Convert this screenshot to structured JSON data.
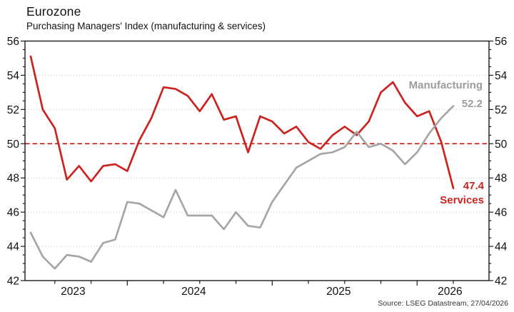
{
  "header": {
    "title": "Eurozone",
    "subtitle": "Purchasing Managers' Index (manufacturing & services)"
  },
  "chart_data": {
    "type": "line",
    "x_months": [
      "2023-05",
      "2023-06",
      "2023-07",
      "2023-08",
      "2023-09",
      "2023-10",
      "2023-11",
      "2023-12",
      "2024-01",
      "2024-02",
      "2024-03",
      "2024-04",
      "2024-05",
      "2024-06",
      "2024-07",
      "2024-08",
      "2024-09",
      "2024-10",
      "2024-11",
      "2024-12",
      "2025-01",
      "2025-02",
      "2025-03",
      "2025-04",
      "2025-05",
      "2025-06",
      "2025-07",
      "2025-08",
      "2025-09",
      "2025-10",
      "2025-11",
      "2025-12",
      "2026-01",
      "2026-02",
      "2026-03",
      "2026-04"
    ],
    "series": [
      {
        "name": "Services",
        "color": "#cb2420",
        "end_label": "47.4",
        "values": [
          55.1,
          52.0,
          50.9,
          47.9,
          48.7,
          47.8,
          48.7,
          48.8,
          48.4,
          50.2,
          51.5,
          53.3,
          53.2,
          52.8,
          51.9,
          52.9,
          51.4,
          51.6,
          49.5,
          51.6,
          51.3,
          50.6,
          51.0,
          50.1,
          49.7,
          50.5,
          51.0,
          50.5,
          51.3,
          53.0,
          53.6,
          52.4,
          51.6,
          51.9,
          50.1,
          47.4
        ]
      },
      {
        "name": "Manufacturing",
        "color": "#a6a6a6",
        "end_label": "52.2",
        "values": [
          44.8,
          43.4,
          42.7,
          43.5,
          43.4,
          43.1,
          44.2,
          44.4,
          46.6,
          46.5,
          46.1,
          45.7,
          47.3,
          45.8,
          45.8,
          45.8,
          45.0,
          46.0,
          45.2,
          45.1,
          46.6,
          47.6,
          48.6,
          49.0,
          49.4,
          49.5,
          49.8,
          50.7,
          49.8,
          50.0,
          49.6,
          48.8,
          49.5,
          50.6,
          51.5,
          52.2
        ]
      }
    ],
    "ylim": [
      42,
      56
    ],
    "y_tick_step": 2,
    "y_minor_step": 0.5,
    "y_tick_labels": [
      "42",
      "44",
      "46",
      "48",
      "50",
      "52",
      "54",
      "56"
    ],
    "gridlines_at": [
      44,
      46,
      48,
      52,
      54
    ],
    "grid_style": "dotted",
    "reference_line": {
      "value": 50,
      "style": "dashed",
      "color": "#cb2420"
    },
    "x_year_labels": [
      "2023",
      "2024",
      "2025",
      "2026"
    ],
    "legend_position": "line-end-labels",
    "axis_labels_both_sides": true
  },
  "annotations": {
    "manufacturing_label": "Manufacturing",
    "manufacturing_value": "52.2",
    "services_value": "47.4",
    "services_label": "Services"
  },
  "footer": {
    "source": "Source: LSEG Datastream, 27/04/2026"
  }
}
